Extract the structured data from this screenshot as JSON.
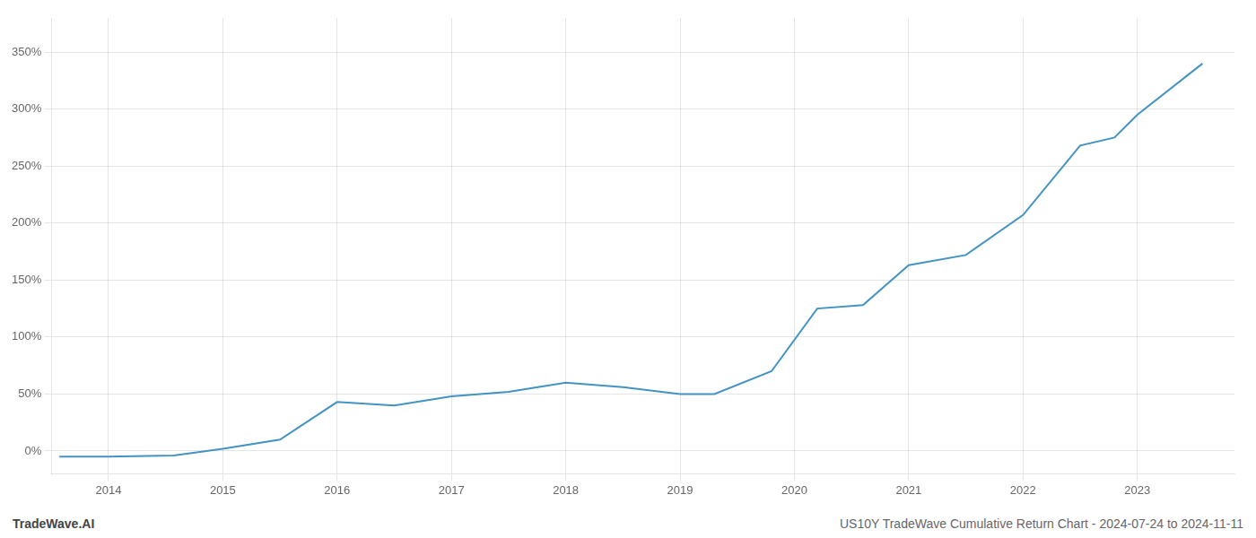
{
  "chart_data": {
    "type": "line",
    "x": [
      2013.57,
      2014.0,
      2014.57,
      2015.0,
      2015.5,
      2016.0,
      2016.5,
      2017.0,
      2017.5,
      2018.0,
      2018.5,
      2019.0,
      2019.3,
      2019.8,
      2020.2,
      2020.6,
      2021.0,
      2021.5,
      2022.0,
      2022.5,
      2022.8,
      2023.0,
      2023.57
    ],
    "values": [
      -5,
      -5,
      -4,
      2,
      10,
      43,
      40,
      48,
      52,
      60,
      56,
      50,
      50,
      70,
      125,
      128,
      163,
      172,
      207,
      268,
      275,
      295,
      340
    ],
    "color": "#4393c3",
    "xlim": [
      2013.5,
      2023.85
    ],
    "xticks": [
      2014,
      2015,
      2016,
      2017,
      2018,
      2019,
      2020,
      2021,
      2022,
      2023
    ],
    "ylim": [
      -20,
      380
    ],
    "yticks": [
      {
        "value": 0,
        "label": "0%"
      },
      {
        "value": 50,
        "label": "50%"
      },
      {
        "value": 100,
        "label": "100%"
      },
      {
        "value": 150,
        "label": "150%"
      },
      {
        "value": 200,
        "label": "200%"
      },
      {
        "value": 250,
        "label": "250%"
      },
      {
        "value": 300,
        "label": "300%"
      },
      {
        "value": 350,
        "label": "350%"
      }
    ],
    "grid": true,
    "annotations": [
      "TradeWave.AI",
      "US10Y TradeWave Cumulative Return Chart - 2024-07-24 to 2024-11-11"
    ]
  }
}
